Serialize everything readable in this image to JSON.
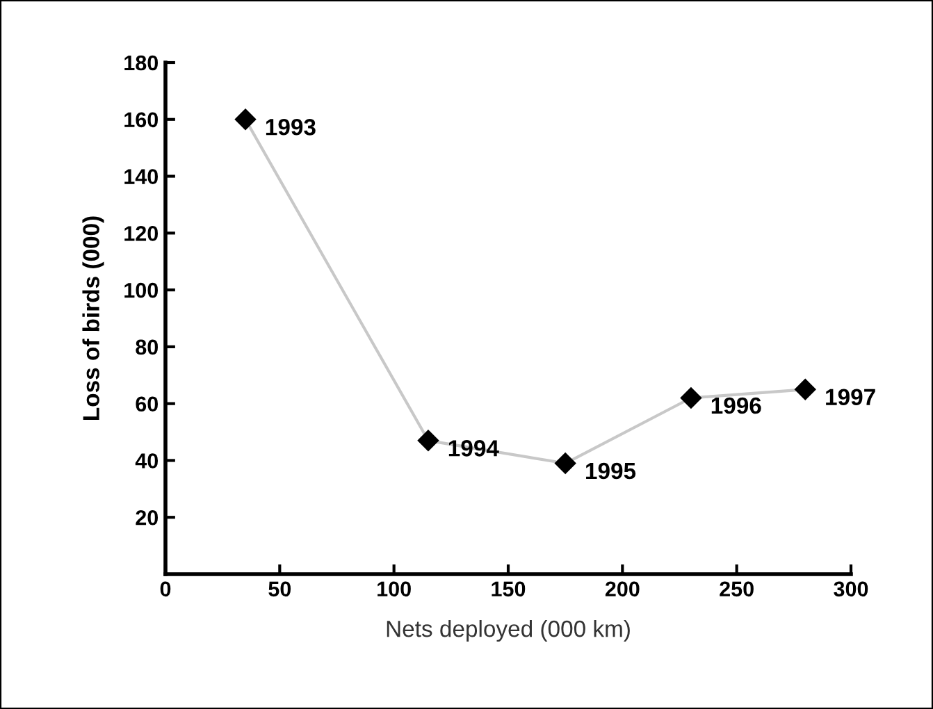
{
  "chart_data": {
    "type": "line",
    "xlabel": "Nets deployed (000 km)",
    "ylabel": "Loss of birds (000)",
    "x": [
      35,
      115,
      175,
      230,
      280
    ],
    "series": [
      {
        "color": "#000000",
        "marker": "diamond",
        "values": [
          160,
          47,
          39,
          62,
          65
        ]
      }
    ],
    "xlim": [
      0,
      300
    ],
    "xticks": [
      0,
      50,
      100,
      150,
      200,
      250,
      300
    ],
    "ylim": [
      0,
      180
    ],
    "yticks": [
      20,
      40,
      60,
      80,
      100,
      120,
      140,
      160,
      180
    ],
    "grid": false,
    "legend": false,
    "annotations": [
      {
        "text": "1993",
        "x": 35,
        "y": 160
      },
      {
        "text": "1994",
        "x": 115,
        "y": 47
      },
      {
        "text": "1995",
        "x": 175,
        "y": 39
      },
      {
        "text": "1996",
        "x": 230,
        "y": 62
      },
      {
        "text": "1997",
        "x": 280,
        "y": 65
      }
    ]
  }
}
